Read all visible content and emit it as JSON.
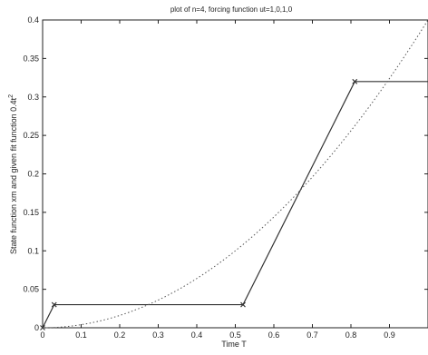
{
  "chart_data": {
    "type": "line",
    "title": "plot of n=4, forcing function ut=1,0,1,0",
    "xlabel": "Time T",
    "ylabel": "State function xm and given fit function 0.4t",
    "ylabel_superscript": "2",
    "xlim": [
      0,
      1.0
    ],
    "ylim": [
      0,
      0.4
    ],
    "xticks": [
      "0",
      "0.1",
      "0.2",
      "0.3",
      "0.4",
      "0.5",
      "0.6",
      "0.7",
      "0.8",
      "0.9"
    ],
    "xtick_values": [
      0,
      0.1,
      0.2,
      0.3,
      0.4,
      0.5,
      0.6,
      0.7,
      0.8,
      0.9
    ],
    "yticks": [
      "0",
      "0.05",
      "0.1",
      "0.15",
      "0.2",
      "0.25",
      "0.3",
      "0.35",
      "0.4"
    ],
    "ytick_values": [
      0,
      0.05,
      0.1,
      0.15,
      0.2,
      0.25,
      0.3,
      0.35,
      0.4
    ],
    "grid": false,
    "series": [
      {
        "style": "solid-with-x-markers",
        "color": "#333333",
        "x": [
          0,
          0.03,
          0.52,
          0.81,
          1.0
        ],
        "y": [
          0,
          0.03,
          0.03,
          0.32,
          0.32
        ],
        "markers": [
          true,
          true,
          true,
          true,
          false
        ]
      },
      {
        "style": "dotted",
        "color": "#555555",
        "function": "0.4t^2",
        "coefficient": 0.4,
        "exponent": 2
      }
    ]
  }
}
